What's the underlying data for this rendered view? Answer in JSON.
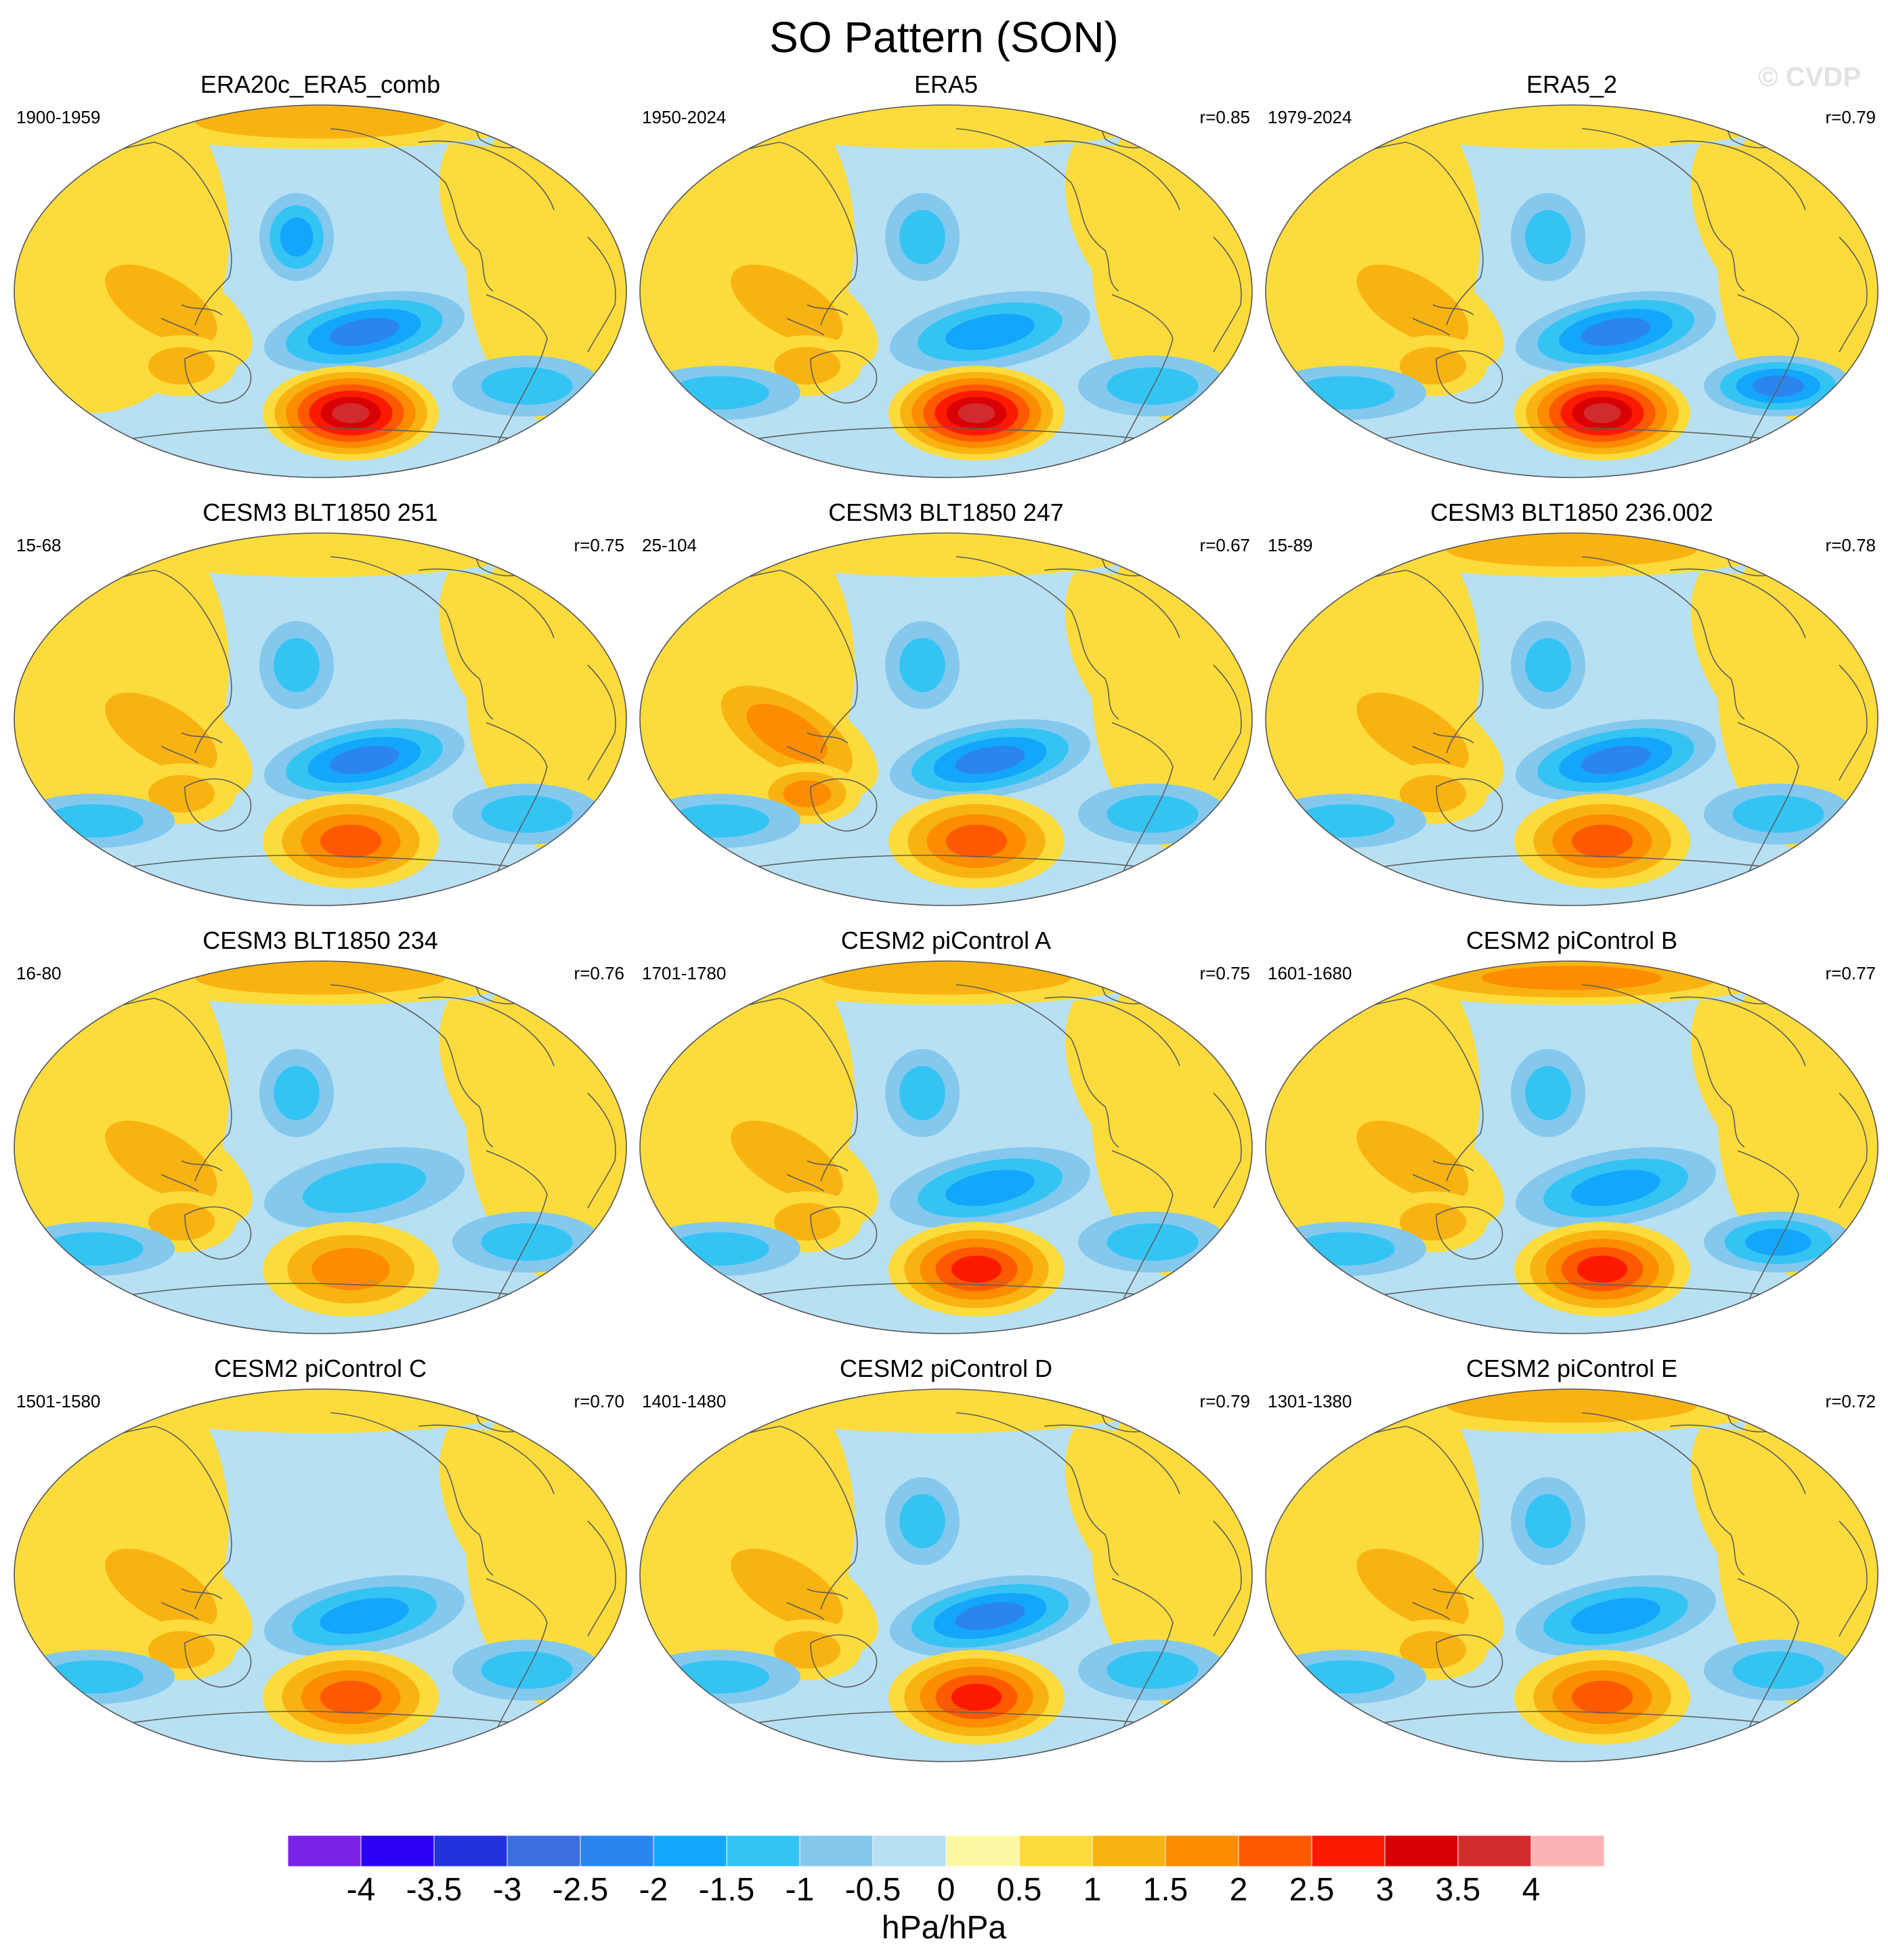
{
  "title": "SO Pattern (SON)",
  "watermark": "© CVDP",
  "colors": {
    "background": "#ffffff",
    "coast": "#5e5e5e",
    "levels": [
      "#7a22e8",
      "#2b00f5",
      "#2233dd",
      "#3d6ee0",
      "#2b85ee",
      "#14a6fb",
      "#34c4f4",
      "#84c8ee",
      "#b7e0f3",
      "#fdf7a4",
      "#fcdc3c",
      "#f9b311",
      "#fc8c00",
      "#fd5900",
      "#fb1a00",
      "#d90005",
      "#d12b2e",
      "#fcb3b3"
    ]
  },
  "panels": [
    {
      "id": "p1",
      "title": "ERA20c_ERA5_comb",
      "years": "1900-1959",
      "r": "",
      "center_max": 3.5,
      "south_pacific_min": -2.0,
      "north_pacific_min": -1.5,
      "east_min": -1.0,
      "indo_pos": 1.0,
      "arctic_pos": 1.0,
      "west_neg": 0.0,
      "atl_pos": 0.5
    },
    {
      "id": "p2",
      "title": "ERA5",
      "years": "1950-2024",
      "r": "r=0.85",
      "center_max": 3.5,
      "south_pacific_min": -1.5,
      "north_pacific_min": -1.0,
      "east_min": -1.0,
      "indo_pos": 1.0,
      "arctic_pos": 0.5,
      "west_neg": -1.0,
      "atl_pos": 0.5
    },
    {
      "id": "p3",
      "title": "ERA5_2",
      "years": "1979-2024",
      "r": "r=0.79",
      "center_max": 3.5,
      "south_pacific_min": -2.0,
      "north_pacific_min": -1.0,
      "east_min": -2.0,
      "indo_pos": 1.0,
      "arctic_pos": 0.5,
      "west_neg": -1.0,
      "atl_pos": 0.5
    },
    {
      "id": "p4",
      "title": "CESM3 BLT1850 251",
      "years": "15-68",
      "r": "r=0.75",
      "center_max": 2.0,
      "south_pacific_min": -2.0,
      "north_pacific_min": -1.0,
      "east_min": -1.0,
      "indo_pos": 1.0,
      "arctic_pos": 0.5,
      "west_neg": -1.0,
      "atl_pos": 0.5
    },
    {
      "id": "p5",
      "title": "CESM3 BLT1850 247",
      "years": "25-104",
      "r": "r=0.67",
      "center_max": 2.0,
      "south_pacific_min": -2.0,
      "north_pacific_min": -1.0,
      "east_min": -1.0,
      "indo_pos": 1.5,
      "arctic_pos": 0.5,
      "west_neg": -1.0,
      "atl_pos": 0.5
    },
    {
      "id": "p6",
      "title": "CESM3 BLT1850 236.002",
      "years": "15-89",
      "r": "r=0.78",
      "center_max": 2.0,
      "south_pacific_min": -2.0,
      "north_pacific_min": -1.0,
      "east_min": -1.0,
      "indo_pos": 1.0,
      "arctic_pos": 1.0,
      "west_neg": -1.0,
      "atl_pos": 0.5
    },
    {
      "id": "p7",
      "title": "CESM3 BLT1850 234",
      "years": "16-80",
      "r": "r=0.76",
      "center_max": 1.5,
      "south_pacific_min": -1.0,
      "north_pacific_min": -1.0,
      "east_min": -1.0,
      "indo_pos": 1.0,
      "arctic_pos": 1.0,
      "west_neg": -1.0,
      "atl_pos": 0.5
    },
    {
      "id": "p8",
      "title": "CESM2 piControl A",
      "years": "1701-1780",
      "r": "r=0.75",
      "center_max": 2.5,
      "south_pacific_min": -1.5,
      "north_pacific_min": -1.0,
      "east_min": -1.0,
      "indo_pos": 1.0,
      "arctic_pos": 1.0,
      "west_neg": -1.0,
      "atl_pos": 0.5
    },
    {
      "id": "p9",
      "title": "CESM2 piControl B",
      "years": "1601-1680",
      "r": "r=0.77",
      "center_max": 2.5,
      "south_pacific_min": -1.5,
      "north_pacific_min": -1.0,
      "east_min": -1.5,
      "indo_pos": 1.0,
      "arctic_pos": 1.5,
      "west_neg": -1.0,
      "atl_pos": 0.5
    },
    {
      "id": "p10",
      "title": "CESM2 piControl C",
      "years": "1501-1580",
      "r": "r=0.70",
      "center_max": 2.0,
      "south_pacific_min": -1.5,
      "north_pacific_min": 0.0,
      "east_min": -1.0,
      "indo_pos": 1.0,
      "arctic_pos": 0.5,
      "west_neg": -1.0,
      "atl_pos": 0.5
    },
    {
      "id": "p11",
      "title": "CESM2 piControl D",
      "years": "1401-1480",
      "r": "r=0.79",
      "center_max": 2.5,
      "south_pacific_min": -2.0,
      "north_pacific_min": -1.0,
      "east_min": -1.0,
      "indo_pos": 1.0,
      "arctic_pos": 0.5,
      "west_neg": -1.0,
      "atl_pos": 0.5
    },
    {
      "id": "p12",
      "title": "CESM2 piControl E",
      "years": "1301-1380",
      "r": "r=0.72",
      "center_max": 2.0,
      "south_pacific_min": -1.5,
      "north_pacific_min": -1.0,
      "east_min": -1.0,
      "indo_pos": 1.0,
      "arctic_pos": 1.0,
      "west_neg": -1.0,
      "atl_pos": 0.5
    }
  ],
  "chart_data": {
    "type": "heatmap",
    "title": "SO Pattern (SON)",
    "projection": "Robinson, Pacific-centered",
    "variable": "Sea level pressure regression on Southern Oscillation index",
    "units": "hPa/hPa",
    "levels": [
      -4,
      -3.5,
      -3,
      -2.5,
      -2,
      -1.5,
      -1,
      -0.5,
      0,
      0.5,
      1,
      1.5,
      2,
      2.5,
      3,
      3.5,
      4
    ],
    "level_labels": [
      "-4",
      "-3.5",
      "-3",
      "-2.5",
      "-2",
      "-1.5",
      "-1",
      "-0.5",
      "0",
      "0.5",
      "1",
      "1.5",
      "2",
      "2.5",
      "3",
      "3.5",
      "4"
    ],
    "colorbar_label": "hPa/hPa",
    "panel_count": 12,
    "layout": "4 rows x 3 columns"
  }
}
